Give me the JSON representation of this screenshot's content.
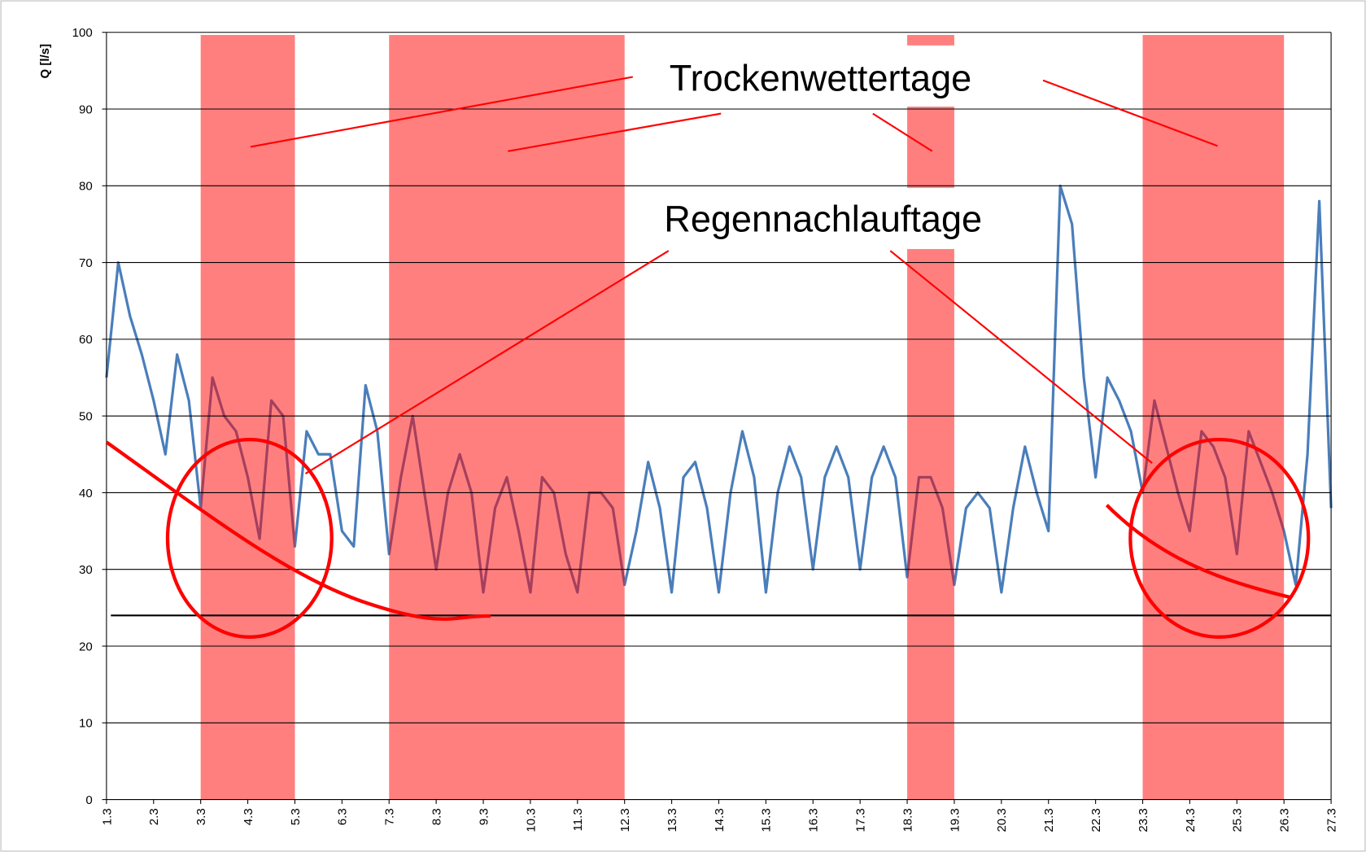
{
  "chart_data": {
    "type": "line",
    "ylabel": "Q [l/s]",
    "xlim": [
      0,
      26
    ],
    "xticks": [
      {
        "value": 0,
        "label": "1.3"
      },
      {
        "value": 1,
        "label": "2.3"
      },
      {
        "value": 2,
        "label": "3.3"
      },
      {
        "value": 3,
        "label": "4.3"
      },
      {
        "value": 4,
        "label": "5.3"
      },
      {
        "value": 5,
        "label": "6.3"
      },
      {
        "value": 6,
        "label": "7.3"
      },
      {
        "value": 7,
        "label": "8.3"
      },
      {
        "value": 8,
        "label": "9.3"
      },
      {
        "value": 9,
        "label": "10.3"
      },
      {
        "value": 10,
        "label": "11.3"
      },
      {
        "value": 11,
        "label": "12.3"
      },
      {
        "value": 12,
        "label": "13.3"
      },
      {
        "value": 13,
        "label": "14.3"
      },
      {
        "value": 14,
        "label": "15.3"
      },
      {
        "value": 15,
        "label": "16.3"
      },
      {
        "value": 16,
        "label": "17.3"
      },
      {
        "value": 17,
        "label": "18.3"
      },
      {
        "value": 18,
        "label": "19.3"
      },
      {
        "value": 19,
        "label": "20.3"
      },
      {
        "value": 20,
        "label": "21.3"
      },
      {
        "value": 21,
        "label": "22.3"
      },
      {
        "value": 22,
        "label": "23.3"
      },
      {
        "value": 23,
        "label": "24.3"
      },
      {
        "value": 24,
        "label": "25.3"
      },
      {
        "value": 25,
        "label": "26.3"
      },
      {
        "value": 26,
        "label": "27.3"
      }
    ],
    "ylim": [
      0,
      100
    ],
    "yticks": [
      0,
      10,
      20,
      30,
      40,
      50,
      60,
      70,
      80,
      90,
      100
    ],
    "grid": true,
    "x": [
      0,
      0.25,
      0.5,
      0.75,
      1,
      1.25,
      1.5,
      1.75,
      2,
      2.25,
      2.5,
      2.75,
      3,
      3.25,
      3.5,
      3.75,
      4,
      4.25,
      4.5,
      4.75,
      5,
      5.25,
      5.5,
      5.75,
      6,
      6.25,
      6.5,
      6.75,
      7,
      7.25,
      7.5,
      7.75,
      8,
      8.25,
      8.5,
      8.75,
      9,
      9.25,
      9.5,
      9.75,
      10,
      10.25,
      10.5,
      10.75,
      11,
      11.25,
      11.5,
      11.75,
      12,
      12.25,
      12.5,
      12.75,
      13,
      13.25,
      13.5,
      13.75,
      14,
      14.25,
      14.5,
      14.75,
      15,
      15.25,
      15.5,
      15.75,
      16,
      16.25,
      16.5,
      16.75,
      17,
      17.25,
      17.5,
      17.75,
      18,
      18.25,
      18.5,
      18.75,
      19,
      19.25,
      19.5,
      19.75,
      20,
      20.25,
      20.5,
      20.75,
      21,
      21.25,
      21.5,
      21.75,
      22,
      22.25,
      22.5,
      22.75,
      23,
      23.25,
      23.5,
      23.75,
      24,
      24.25,
      24.5,
      24.75,
      25,
      25.25,
      25.5,
      25.75,
      26
    ],
    "series": [
      {
        "color": "#4a7ebb",
        "values": [
          55,
          70,
          63,
          58,
          52,
          45,
          58,
          52,
          38,
          55,
          50,
          48,
          42,
          34,
          52,
          50,
          33,
          48,
          45,
          45,
          35,
          33,
          54,
          48,
          32,
          42,
          50,
          40,
          30,
          40,
          45,
          40,
          27,
          38,
          42,
          35,
          27,
          42,
          40,
          32,
          27,
          40,
          40,
          38,
          28,
          35,
          44,
          38,
          27,
          42,
          44,
          38,
          27,
          40,
          48,
          42,
          27,
          40,
          46,
          42,
          30,
          42,
          46,
          42,
          30,
          42,
          46,
          42,
          29,
          42,
          42,
          38,
          28,
          38,
          40,
          38,
          27,
          38,
          46,
          40,
          35,
          80,
          75,
          55,
          42,
          55,
          52,
          48,
          40,
          52,
          46,
          40,
          35,
          48,
          46,
          42,
          32,
          48,
          44,
          40,
          35,
          28,
          45,
          78,
          38
        ]
      }
    ],
    "bands": [
      [
        2,
        4
      ],
      [
        6,
        11
      ],
      [
        17,
        18
      ],
      [
        22,
        25
      ]
    ],
    "band_color": "#ff0000",
    "baseline": 24,
    "annotations": [
      "Trockenwettertage",
      "Regennachlauftage"
    ],
    "annotation_color": "#ff0000"
  }
}
